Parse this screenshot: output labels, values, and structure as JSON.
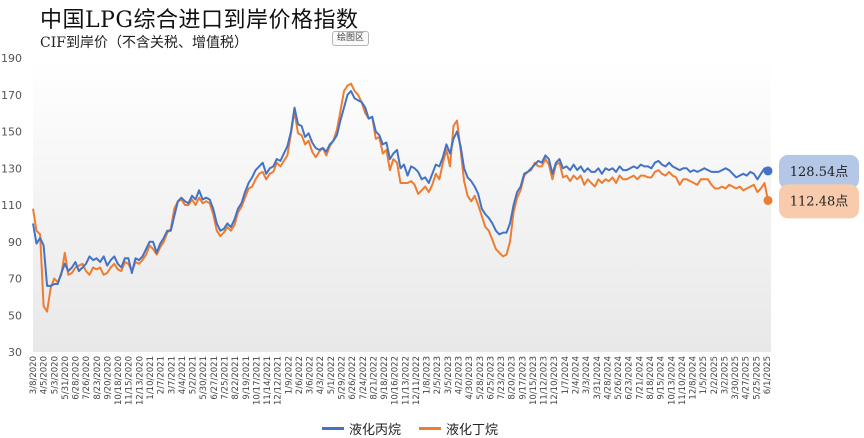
{
  "header": {
    "title": "中国LPG综合进口到岸价格指数",
    "subtitle": "CIF到岸价（不含关税、增值税）",
    "area_button": "绘图区"
  },
  "colors": {
    "propane": "#4472C4",
    "butane": "#ED7D31",
    "propane_callout_bg": "#B4C7E7",
    "butane_callout_bg": "#F8CBAD",
    "plot_bg_top": "#ffffff",
    "plot_bg_bottom": "#e9e9e9"
  },
  "chart_data": {
    "type": "line",
    "title": "中国LPG综合进口到岸价格指数",
    "subtitle": "CIF到岸价（不含关税、增值税）",
    "xlabel": "",
    "ylabel": "",
    "ylim": [
      30,
      190
    ],
    "yticks": [
      30,
      50,
      70,
      90,
      110,
      130,
      150,
      170,
      190
    ],
    "x_tick_labels": [
      "3/8/2020",
      "4/5/2020",
      "5/3/2020",
      "5/31/2020",
      "6/28/2020",
      "7/26/2020",
      "8/23/2020",
      "9/20/2020",
      "10/18/2020",
      "11/15/2020",
      "12/13/2020",
      "1/10/2021",
      "2/7/2021",
      "3/7/2021",
      "4/4/2021",
      "5/2/2021",
      "5/30/2021",
      "6/27/2021",
      "7/25/2021",
      "8/22/2021",
      "9/19/2021",
      "10/17/2021",
      "11/14/2021",
      "12/12/2021",
      "1/9/2022",
      "2/6/2022",
      "3/6/2022",
      "4/3/2022",
      "5/1/2022",
      "5/29/2022",
      "6/26/2022",
      "7/24/2022",
      "8/21/2022",
      "9/18/2022",
      "10/16/2022",
      "11/13/2022",
      "12/11/2022",
      "1/8/2023",
      "2/5/2023",
      "3/5/2023",
      "4/2/2023",
      "4/30/2023",
      "5/28/2023",
      "6/25/2023",
      "7/23/2023",
      "8/20/2023",
      "9/17/2023",
      "10/15/2023",
      "11/12/2023",
      "12/10/2023",
      "1/7/2024",
      "2/4/2024",
      "3/3/2024",
      "3/31/2024",
      "4/28/2024",
      "5/26/2024",
      "6/23/2024",
      "7/21/2024",
      "8/18/2024",
      "9/15/2024",
      "10/13/2024",
      "11/10/2024",
      "12/8/2024",
      "1/5/2025",
      "2/2/2025",
      "3/2/2025",
      "3/30/2025",
      "4/27/2025",
      "5/25/2025",
      "6/1/2025"
    ],
    "grid": false,
    "legend_position": "bottom",
    "series": [
      {
        "name": "液化丙烷",
        "color": "#4472C4",
        "last_value": 128.54,
        "last_label": "128.54点",
        "values": [
          100,
          89,
          92,
          88,
          66,
          66,
          67,
          67,
          73,
          78,
          74,
          76,
          79,
          74,
          76,
          78,
          82,
          80,
          81,
          79,
          82,
          77,
          80,
          82,
          78,
          76,
          81,
          81,
          73,
          81,
          80,
          82,
          86,
          90,
          90,
          84,
          89,
          92,
          96,
          96,
          104,
          112,
          114,
          112,
          111,
          115,
          113,
          118,
          113,
          114,
          113,
          108,
          100,
          96,
          97,
          100,
          98,
          102,
          108,
          111,
          117,
          122,
          125,
          129,
          131,
          133,
          127,
          130,
          131,
          135,
          134,
          138,
          142,
          150,
          163,
          154,
          153,
          147,
          149,
          144,
          141,
          140,
          141,
          139,
          143,
          145,
          148,
          156,
          163,
          170,
          172,
          168,
          167,
          166,
          163,
          157,
          158,
          150,
          148,
          143,
          144,
          135,
          138,
          140,
          130,
          132,
          126,
          131,
          130,
          128,
          124,
          125,
          122,
          127,
          132,
          131,
          136,
          143,
          138,
          146,
          150,
          142,
          130,
          125,
          123,
          120,
          116,
          108,
          105,
          103,
          100,
          96,
          94,
          95,
          95,
          100,
          110,
          117,
          120,
          127,
          128,
          130,
          132,
          134,
          133,
          137,
          135,
          127,
          133,
          135,
          130,
          131,
          129,
          132,
          129,
          131,
          128,
          130,
          128,
          128,
          130,
          127,
          130,
          129,
          130,
          128,
          131,
          129,
          129,
          130,
          131,
          130,
          132,
          131,
          131,
          130,
          133,
          134,
          132,
          131,
          133,
          131,
          130,
          129,
          130,
          130,
          128,
          129,
          128,
          129,
          130,
          129,
          128,
          128,
          128,
          129,
          130,
          129,
          127,
          125,
          126,
          127,
          126,
          128,
          127,
          124,
          127,
          130,
          128.54
        ]
      },
      {
        "name": "液化丁烷",
        "color": "#ED7D31",
        "last_value": 112.48,
        "last_label": "112.48点",
        "values": [
          108,
          96,
          94,
          55,
          52,
          65,
          70,
          68,
          72,
          84,
          72,
          73,
          76,
          77,
          78,
          74,
          72,
          76,
          75,
          76,
          72,
          73,
          76,
          78,
          75,
          74,
          79,
          78,
          74,
          79,
          78,
          80,
          83,
          88,
          86,
          83,
          87,
          90,
          95,
          97,
          108,
          112,
          113,
          110,
          110,
          113,
          110,
          114,
          111,
          112,
          111,
          105,
          96,
          93,
          95,
          98,
          96,
          99,
          106,
          109,
          114,
          119,
          120,
          124,
          127,
          128,
          124,
          127,
          128,
          133,
          131,
          134,
          137,
          149,
          161,
          149,
          148,
          143,
          145,
          139,
          136,
          139,
          141,
          137,
          142,
          145,
          151,
          161,
          172,
          175,
          176,
          172,
          170,
          166,
          160,
          157,
          158,
          146,
          147,
          138,
          140,
          129,
          135,
          133,
          122,
          122,
          122,
          123,
          121,
          116,
          118,
          120,
          117,
          121,
          127,
          124,
          133,
          140,
          131,
          153,
          156,
          140,
          123,
          115,
          112,
          115,
          110,
          104,
          98,
          96,
          91,
          86,
          84,
          82,
          83,
          90,
          106,
          114,
          118,
          126,
          128,
          129,
          133,
          131,
          131,
          135,
          132,
          124,
          132,
          133,
          125,
          126,
          123,
          126,
          124,
          126,
          121,
          124,
          122,
          120,
          124,
          122,
          124,
          123,
          125,
          122,
          126,
          124,
          124,
          125,
          126,
          124,
          126,
          126,
          125,
          125,
          128,
          129,
          127,
          126,
          128,
          126,
          125,
          121,
          124,
          124,
          123,
          122,
          121,
          124,
          124,
          124,
          121,
          119,
          119,
          120,
          119,
          121,
          120,
          119,
          120,
          118,
          119,
          120,
          121,
          117,
          119,
          122,
          112.48
        ]
      }
    ]
  }
}
